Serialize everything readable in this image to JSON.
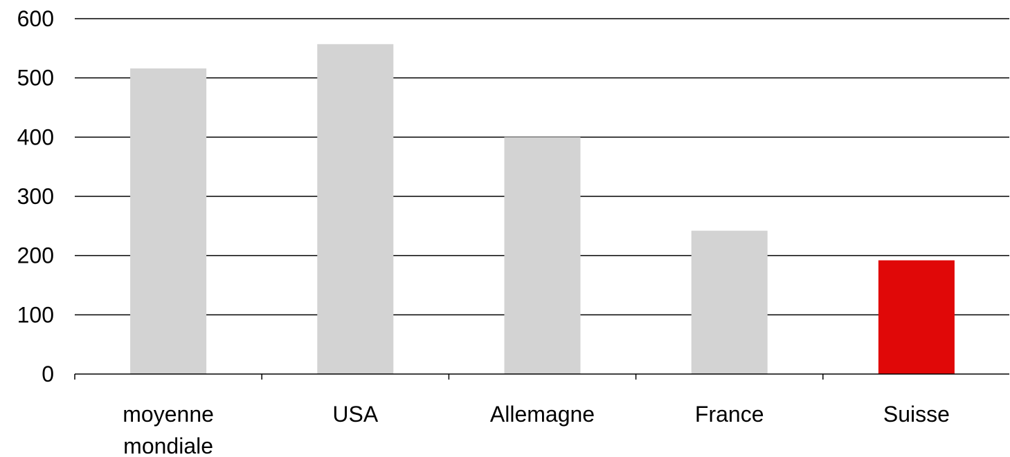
{
  "chart_data": {
    "type": "bar",
    "categories": [
      [
        "moyenne",
        "mondiale"
      ],
      [
        "USA"
      ],
      [
        "Allemagne"
      ],
      [
        "France"
      ],
      [
        "Suisse"
      ]
    ],
    "values": [
      516,
      557,
      400,
      242,
      192
    ],
    "bar_colors": [
      "#d3d3d3",
      "#d3d3d3",
      "#d3d3d3",
      "#d3d3d3",
      "#e00808"
    ],
    "y_ticks": [
      "0",
      "100",
      "200",
      "300",
      "400",
      "500",
      "600"
    ],
    "ylim": [
      0,
      600
    ],
    "grid": true,
    "title": "",
    "xlabel": "",
    "ylabel": ""
  }
}
